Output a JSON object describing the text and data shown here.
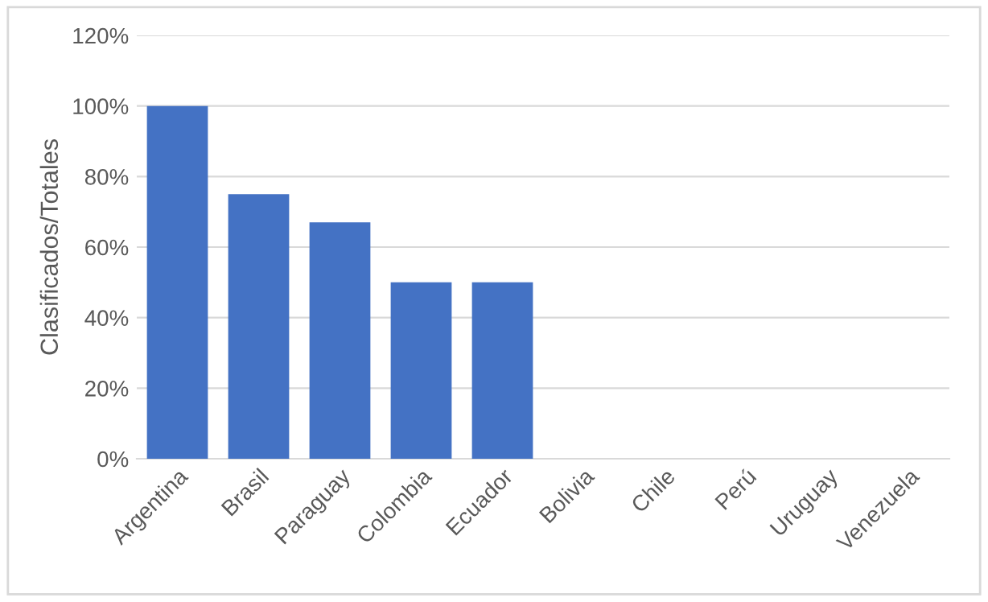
{
  "chart_data": {
    "type": "bar",
    "ylabel": "Clasificados/Totales",
    "categories": [
      "Argentina",
      "Brasil",
      "Paraguay",
      "Colombia",
      "Ecuador",
      "Bolivia",
      "Chile",
      "Perú",
      "Uruguay",
      "Venezuela"
    ],
    "values": [
      100,
      75,
      67,
      50,
      50,
      0,
      0,
      0,
      0,
      0
    ],
    "color": "#4472c4",
    "ylim": [
      0,
      120
    ],
    "yticks": [
      {
        "value": 0,
        "label": "0%"
      },
      {
        "value": 20,
        "label": "20%"
      },
      {
        "value": 40,
        "label": "40%"
      },
      {
        "value": 60,
        "label": "60%"
      },
      {
        "value": 80,
        "label": "80%"
      },
      {
        "value": 100,
        "label": "100%"
      },
      {
        "value": 120,
        "label": "120%"
      }
    ],
    "grid": "y"
  }
}
